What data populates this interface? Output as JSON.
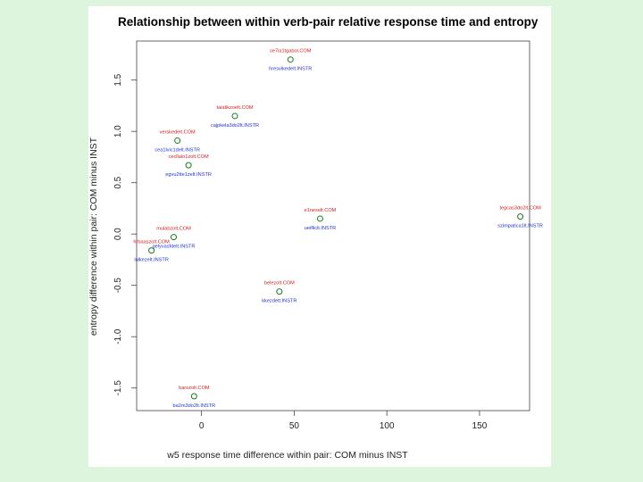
{
  "chart_data": {
    "type": "scatter",
    "title": "Relationship between within verb-pair relative response time and entropy",
    "xlabel": "w5 response time difference within pair: COM minus INST",
    "ylabel": "entropy difference within pair: COM minus INST",
    "xlim": [
      -35,
      177
    ],
    "ylim": [
      -1.72,
      1.88
    ],
    "xticks": [
      0,
      50,
      100,
      150
    ],
    "yticks": [
      -1.5,
      -1.0,
      -0.5,
      0.0,
      0.5,
      1.0,
      1.5
    ],
    "x_tick_labels": [
      "0",
      "50",
      "100",
      "150"
    ],
    "y_tick_labels": [
      "-1.5",
      "-1.0",
      "-0.5",
      "0.0",
      "0.5",
      "1.0",
      "1.5"
    ],
    "com_color": "#d42020",
    "inst_color": "#2233cc",
    "point_color": "#1a7a1a",
    "points": [
      {
        "x": 48,
        "y": 1.7,
        "com": "se7ia1tgabol.COM",
        "inst": "hresvikedelt.INSTR"
      },
      {
        "x": 18,
        "y": 1.15,
        "com": "taiatikzoelt.COM",
        "inst": "cajpkela3do2lt.INSTR"
      },
      {
        "x": -13,
        "y": 0.91,
        "com": "verskedelt.COM",
        "inst": "cea1lvic1delt.INSTR"
      },
      {
        "x": -7,
        "y": 0.67,
        "com": "cecllalo1zolt.COM",
        "inst": "egvu2tte1zelt.INSTR"
      },
      {
        "x": 64,
        "y": 0.15,
        "com": "e1neselt.COM",
        "inst": "ueiflicit.INSTR"
      },
      {
        "x": 172,
        "y": 0.17,
        "com": "tegcas3do2lt.COM",
        "inst": "szimpatica1lt.INSTR"
      },
      {
        "x": -15,
        "y": -0.03,
        "com": "mulabzolt.COM",
        "inst": "gelyvasfdelt.INSTR"
      },
      {
        "x": -27,
        "y": -0.16,
        "com": "hrbaaszolt.COM",
        "inst": "lalkezelt.INSTR"
      },
      {
        "x": 42,
        "y": -0.56,
        "com": "belezolt.COM",
        "inst": "kkezdett.INSTR"
      },
      {
        "x": -4,
        "y": -1.58,
        "com": "barozolt.COM",
        "inst": "ba2m3do2lt.INSTR"
      }
    ]
  }
}
